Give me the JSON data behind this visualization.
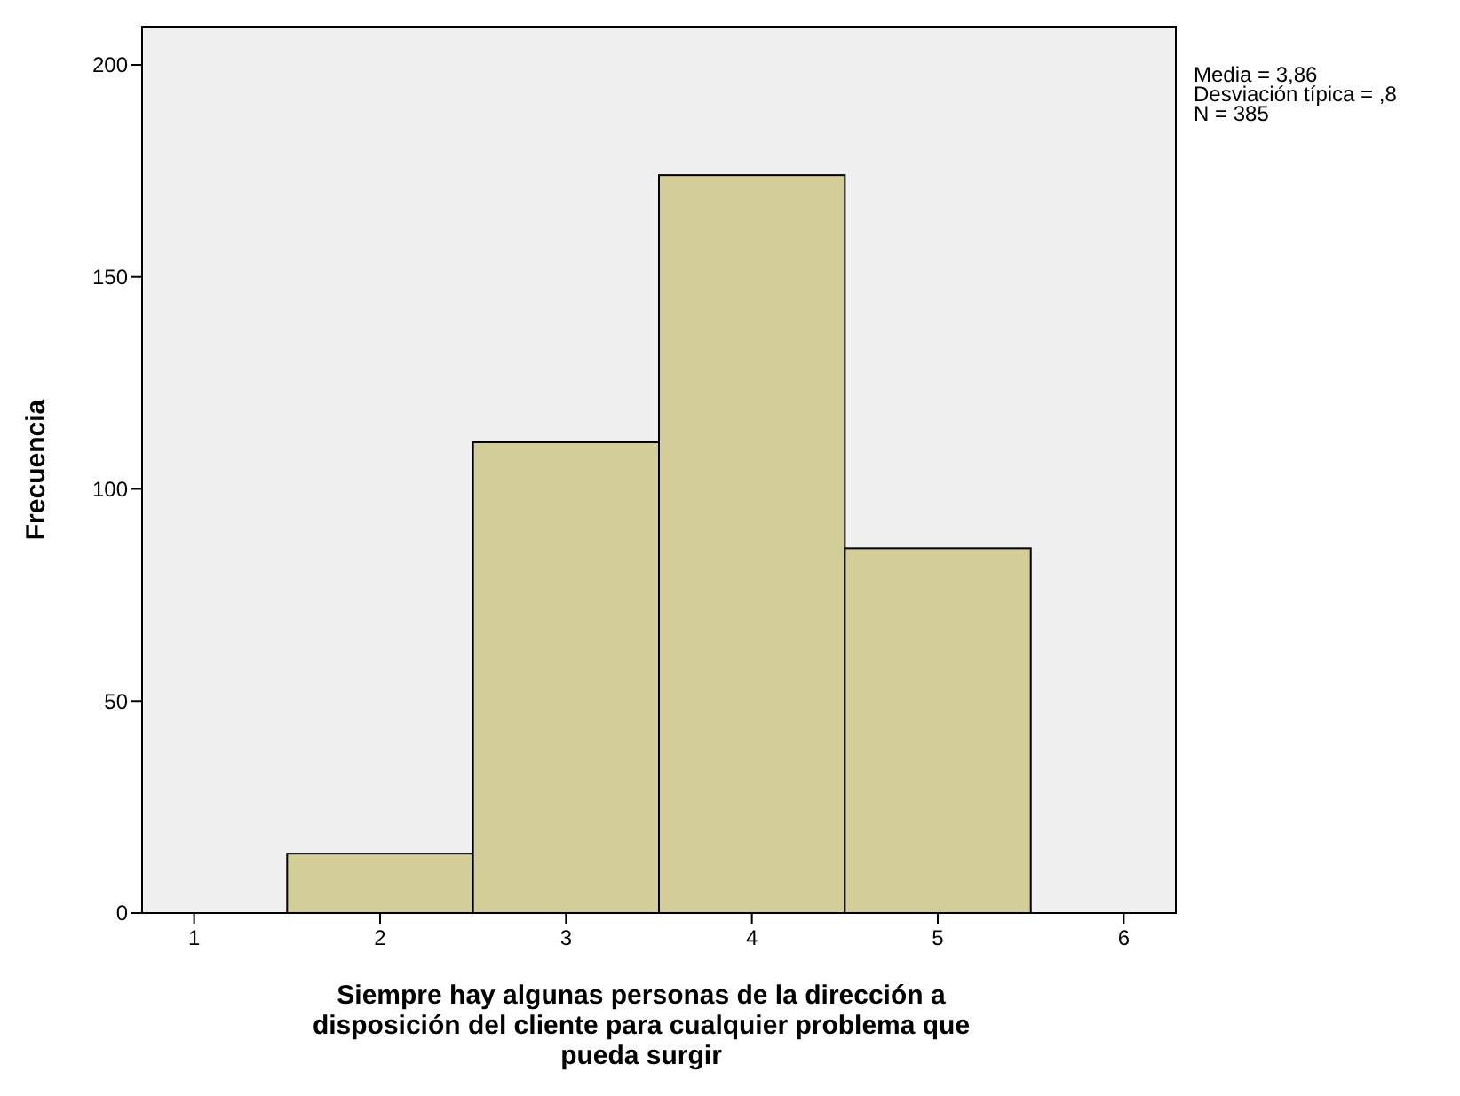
{
  "chart_data": {
    "type": "histogram",
    "xlabel": "Siempre hay algunas personas de la dirección a disposición del cliente para cualquier problema que pueda surgir",
    "ylabel": "Frecuencia",
    "bins": [
      1.5,
      2.5,
      3.5,
      4.5,
      5.5
    ],
    "values": [
      14,
      111,
      174,
      86
    ],
    "color": "#d3ce97",
    "xlim": [
      0.72,
      6.28
    ],
    "xticks": [
      1,
      2,
      3,
      4,
      5,
      6
    ],
    "ylim": [
      0,
      209
    ],
    "yticks": [
      0,
      50,
      100,
      150,
      200
    ],
    "grid": false,
    "annotations": [
      "Media = 3,86",
      "Desviación típica = ,8",
      "N = 385"
    ]
  }
}
